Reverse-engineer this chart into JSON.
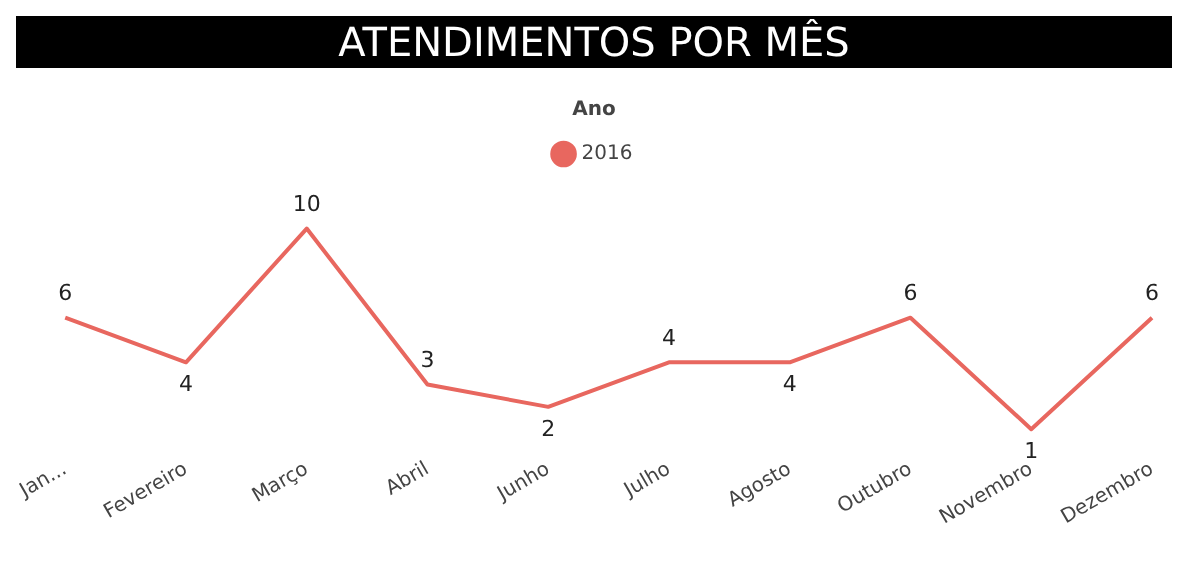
{
  "chart_data": {
    "type": "line",
    "title": "ATENDIMENTOS POR MÊS",
    "legend_title": "Ano",
    "legend": "top",
    "categories": [
      "Jan...",
      "Fevereiro",
      "Março",
      "Abril",
      "Junho",
      "Julho",
      "Agosto",
      "Outubro",
      "Novembro",
      "Dezembro"
    ],
    "series": [
      {
        "name": "2016",
        "color": "#e8675f",
        "values": [
          6,
          4,
          10,
          3,
          2,
          4,
          4,
          6,
          1,
          6
        ]
      }
    ],
    "data_labels": true,
    "marker": "none",
    "grid": false,
    "tick_labels": "x"
  }
}
